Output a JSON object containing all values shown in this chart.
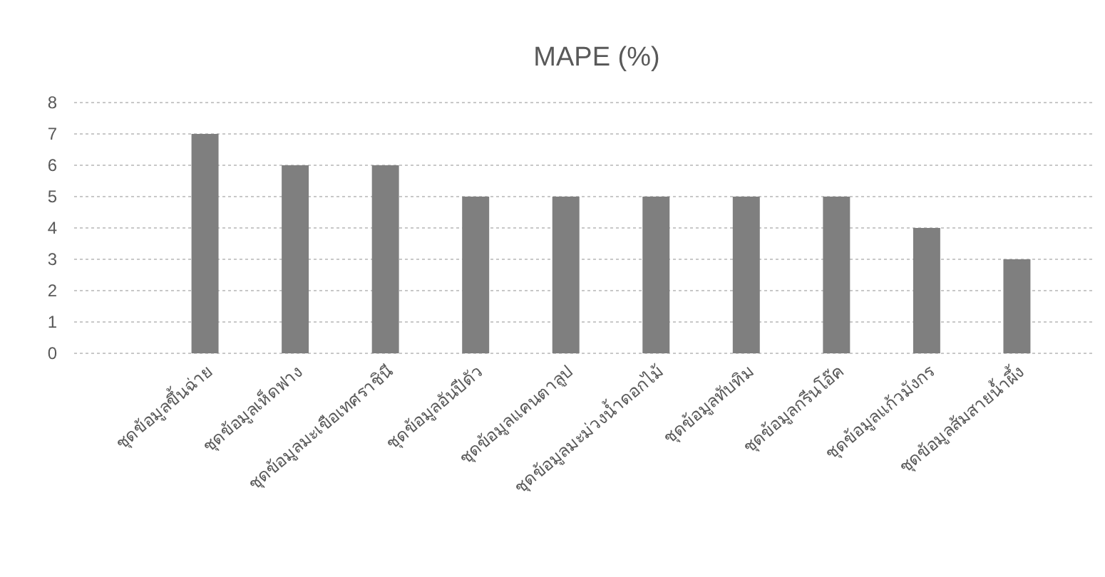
{
  "chart_data": {
    "type": "bar",
    "title": "MAPE (%)",
    "categories": [
      "ชุดข้อมูลขึ้นฉ่าย",
      "ชุดข้อมูลเห็ดฟาง",
      "ชุดข้อมูลมะเขือเทศราชินี",
      "ชุดข้อมูลอันปีดัว",
      "ชุดข้อมูลแคนตาลูป",
      "ชุดข้อมูลมะม่วงน้ำดอกไม้",
      "ชุดข้อมูลทับทิม",
      "ชุดข้อมูลกรีนโอ๊ค",
      "ชุดข้อมูลแก้วมังกร",
      "ชุดข้อมูลส้มสายน้ำผึ้ง"
    ],
    "values": [
      7,
      6,
      6,
      5,
      5,
      5,
      5,
      5,
      4,
      3
    ],
    "color": "#7f7f7f",
    "ylim": [
      0,
      8
    ],
    "yticks": [
      0,
      1,
      2,
      3,
      4,
      5,
      6,
      7,
      8
    ],
    "grid": "y"
  }
}
